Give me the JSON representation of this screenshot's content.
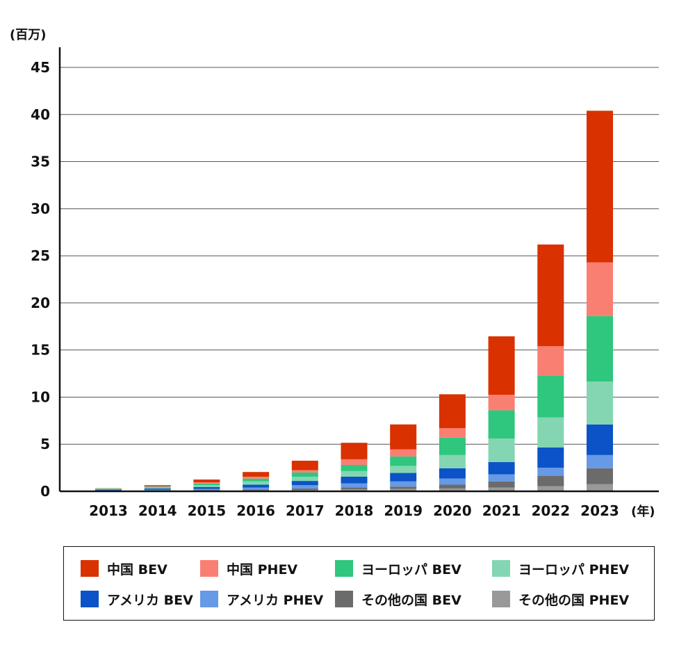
{
  "chart_data": {
    "type": "bar",
    "stacked": true,
    "y_unit_label": "(百万)",
    "x_unit_label": "(年)",
    "ylim": [
      0,
      45
    ],
    "y_ticks": [
      "0",
      "5",
      "10",
      "15",
      "20",
      "25",
      "30",
      "35",
      "40",
      "45"
    ],
    "grid": true,
    "legend_position": "bottom",
    "categories": [
      "2013",
      "2014",
      "2015",
      "2016",
      "2017",
      "2018",
      "2019",
      "2020",
      "2021",
      "2022",
      "2023"
    ],
    "series": [
      {
        "name": "その他の国 PHEV",
        "color": "#999999",
        "values": [
          0.02,
          0.03,
          0.05,
          0.1,
          0.15,
          0.2,
          0.25,
          0.3,
          0.4,
          0.55,
          0.75
        ]
      },
      {
        "name": "その他の国 BEV",
        "color": "#6b6b6b",
        "values": [
          0.02,
          0.04,
          0.06,
          0.1,
          0.15,
          0.2,
          0.25,
          0.4,
          0.65,
          1.1,
          1.7
        ]
      },
      {
        "name": "アメリカ PHEV",
        "color": "#6699e6",
        "values": [
          0.07,
          0.1,
          0.15,
          0.2,
          0.35,
          0.45,
          0.55,
          0.65,
          0.75,
          0.85,
          1.4
        ]
      },
      {
        "name": "アメリカ BEV",
        "color": "#0b53c6",
        "values": [
          0.08,
          0.14,
          0.2,
          0.3,
          0.45,
          0.7,
          0.9,
          1.1,
          1.3,
          2.15,
          3.25
        ]
      },
      {
        "name": "ヨーロッパ PHEV",
        "color": "#83d6b1",
        "values": [
          0.05,
          0.1,
          0.2,
          0.35,
          0.45,
          0.6,
          0.75,
          1.4,
          2.5,
          3.2,
          4.55
        ]
      },
      {
        "name": "ヨーロッパ BEV",
        "color": "#2ec77d",
        "values": [
          0.05,
          0.09,
          0.17,
          0.3,
          0.45,
          0.65,
          1.0,
          1.85,
          3.0,
          4.45,
          6.95
        ]
      },
      {
        "name": "中国 PHEV",
        "color": "#fa7f73",
        "values": [
          0.01,
          0.05,
          0.12,
          0.2,
          0.25,
          0.6,
          0.75,
          1.0,
          1.65,
          3.1,
          5.7
        ]
      },
      {
        "name": "中国 BEV",
        "color": "#d93100",
        "values": [
          0.02,
          0.1,
          0.3,
          0.5,
          1.0,
          1.75,
          2.65,
          3.6,
          6.2,
          10.8,
          16.1
        ]
      }
    ]
  },
  "legend": [
    {
      "label": "中国 BEV",
      "color": "#d93100"
    },
    {
      "label": "中国 PHEV",
      "color": "#fa7f73"
    },
    {
      "label": "ヨーロッパ BEV",
      "color": "#2ec77d"
    },
    {
      "label": "ヨーロッパ PHEV",
      "color": "#83d6b1"
    },
    {
      "label": "アメリカ BEV",
      "color": "#0b53c6"
    },
    {
      "label": "アメリカ PHEV",
      "color": "#6699e6"
    },
    {
      "label": "その他の国 BEV",
      "color": "#6b6b6b"
    },
    {
      "label": "その他の国 PHEV",
      "color": "#999999"
    }
  ]
}
